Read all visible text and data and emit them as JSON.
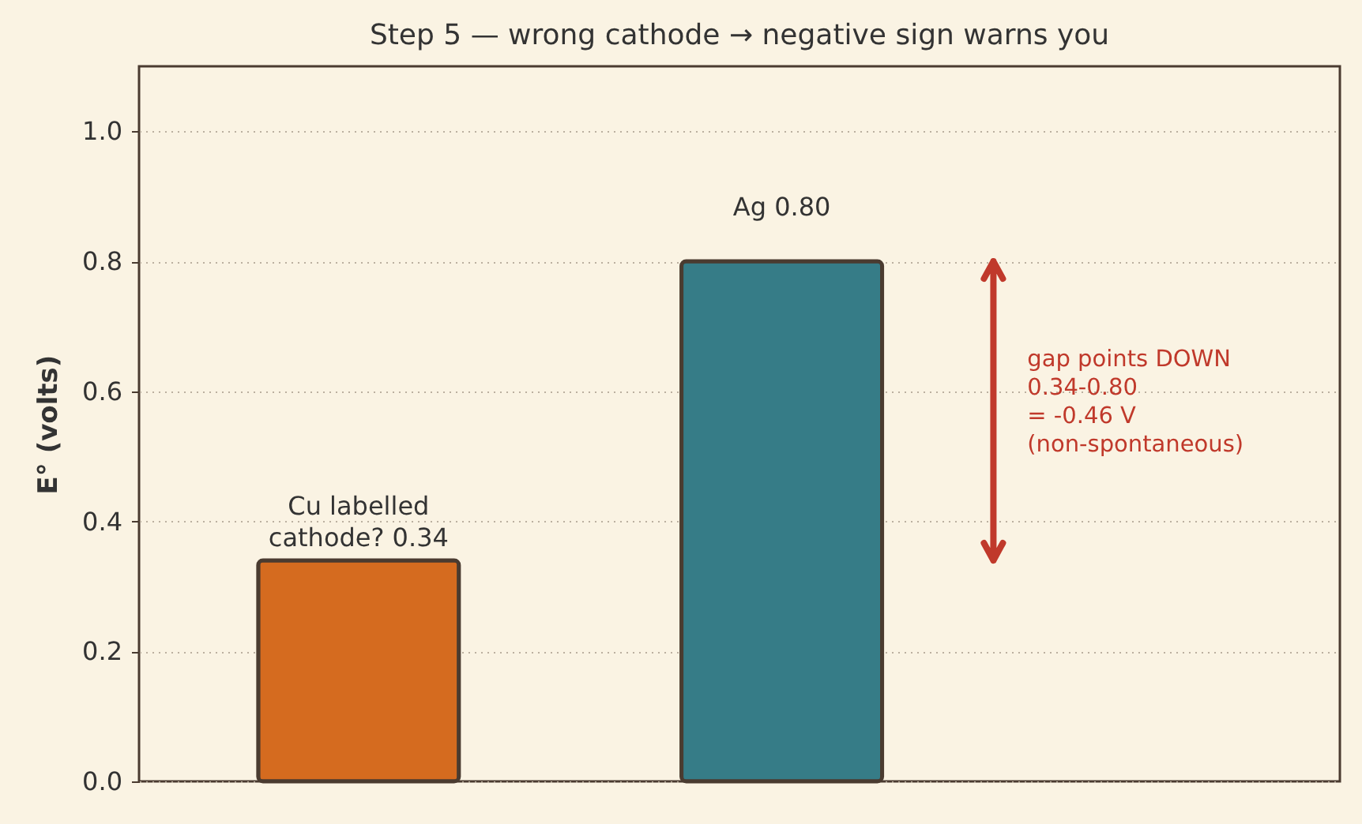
{
  "chart_data": {
    "type": "bar",
    "title": "Step 5 — wrong cathode → negative sign warns you",
    "ylabel": "E°  (volts)",
    "categories": [
      null,
      null
    ],
    "values": [
      0.34,
      0.8
    ],
    "colors": [
      "#d56b1f",
      "#367c87"
    ],
    "value_labels": [
      "Cu labelled\ncathode? 0.34",
      "Ag 0.80"
    ],
    "ylim": [
      0,
      1.1
    ],
    "yticks": [
      {
        "value": 0,
        "label": "0.0"
      },
      {
        "value": 0.2,
        "label": "0.2"
      },
      {
        "value": 0.4,
        "label": "0.4"
      },
      {
        "value": 0.6,
        "label": "0.6"
      },
      {
        "value": 0.8,
        "label": "0.8"
      },
      {
        "value": 1.0,
        "label": "1.0"
      }
    ],
    "grid": "y",
    "annotations": [
      "gap points DOWN\n0.34-0.80\n= -0.46 V\n(non-spontaneous)"
    ]
  }
}
